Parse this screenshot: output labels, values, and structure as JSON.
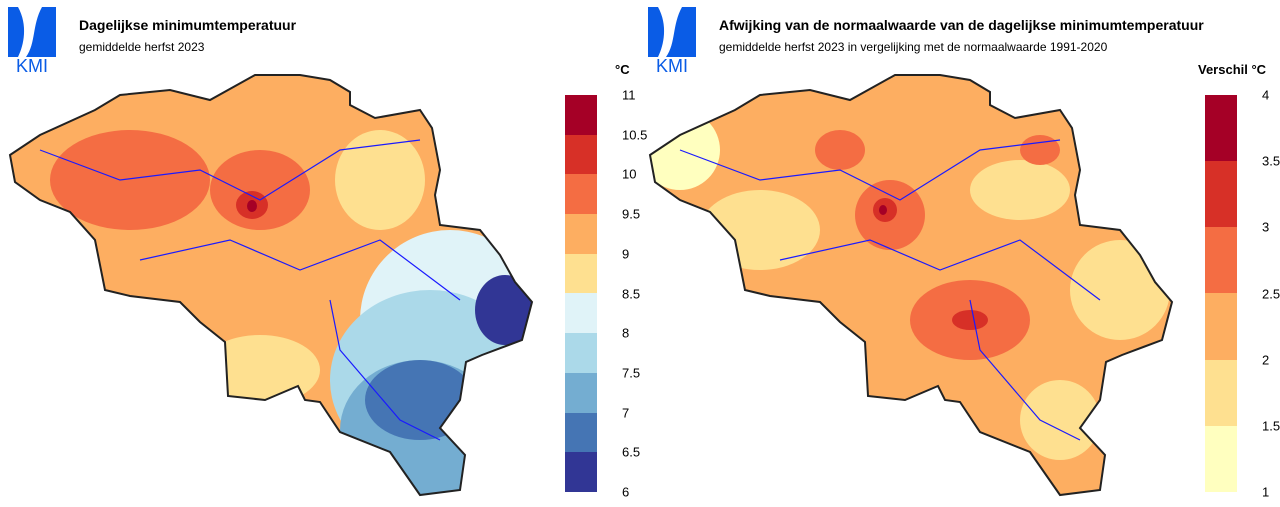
{
  "logo_text": "KMI",
  "left": {
    "title": "Dagelijkse minimumtemperatuur",
    "subtitle": "gemiddelde herfst 2023",
    "unit": "°C",
    "legend": {
      "ticks": [
        "11",
        "10.5",
        "10",
        "9.5",
        "9",
        "8.5",
        "8",
        "7.5",
        "7",
        "6.5",
        "6"
      ],
      "colors": [
        "#a50026",
        "#d73027",
        "#f46d43",
        "#fdae61",
        "#fee090",
        "#e0f3f8",
        "#abd9e9",
        "#74add1",
        "#4575b4",
        "#313695"
      ]
    }
  },
  "right": {
    "title": "Afwijking van de normaalwaarde van de dagelijkse minimumtemperatuur",
    "subtitle": "gemiddelde herfst 2023 in vergelijking met de normaalwaarde 1991-2020",
    "unit": "Verschil °C",
    "legend": {
      "ticks": [
        "4",
        "3.5",
        "3",
        "2.5",
        "2",
        "1.5",
        "1"
      ],
      "colors": [
        "#a50026",
        "#d73027",
        "#f46d43",
        "#fdae61",
        "#fee090",
        "#ffffbf"
      ]
    }
  }
}
